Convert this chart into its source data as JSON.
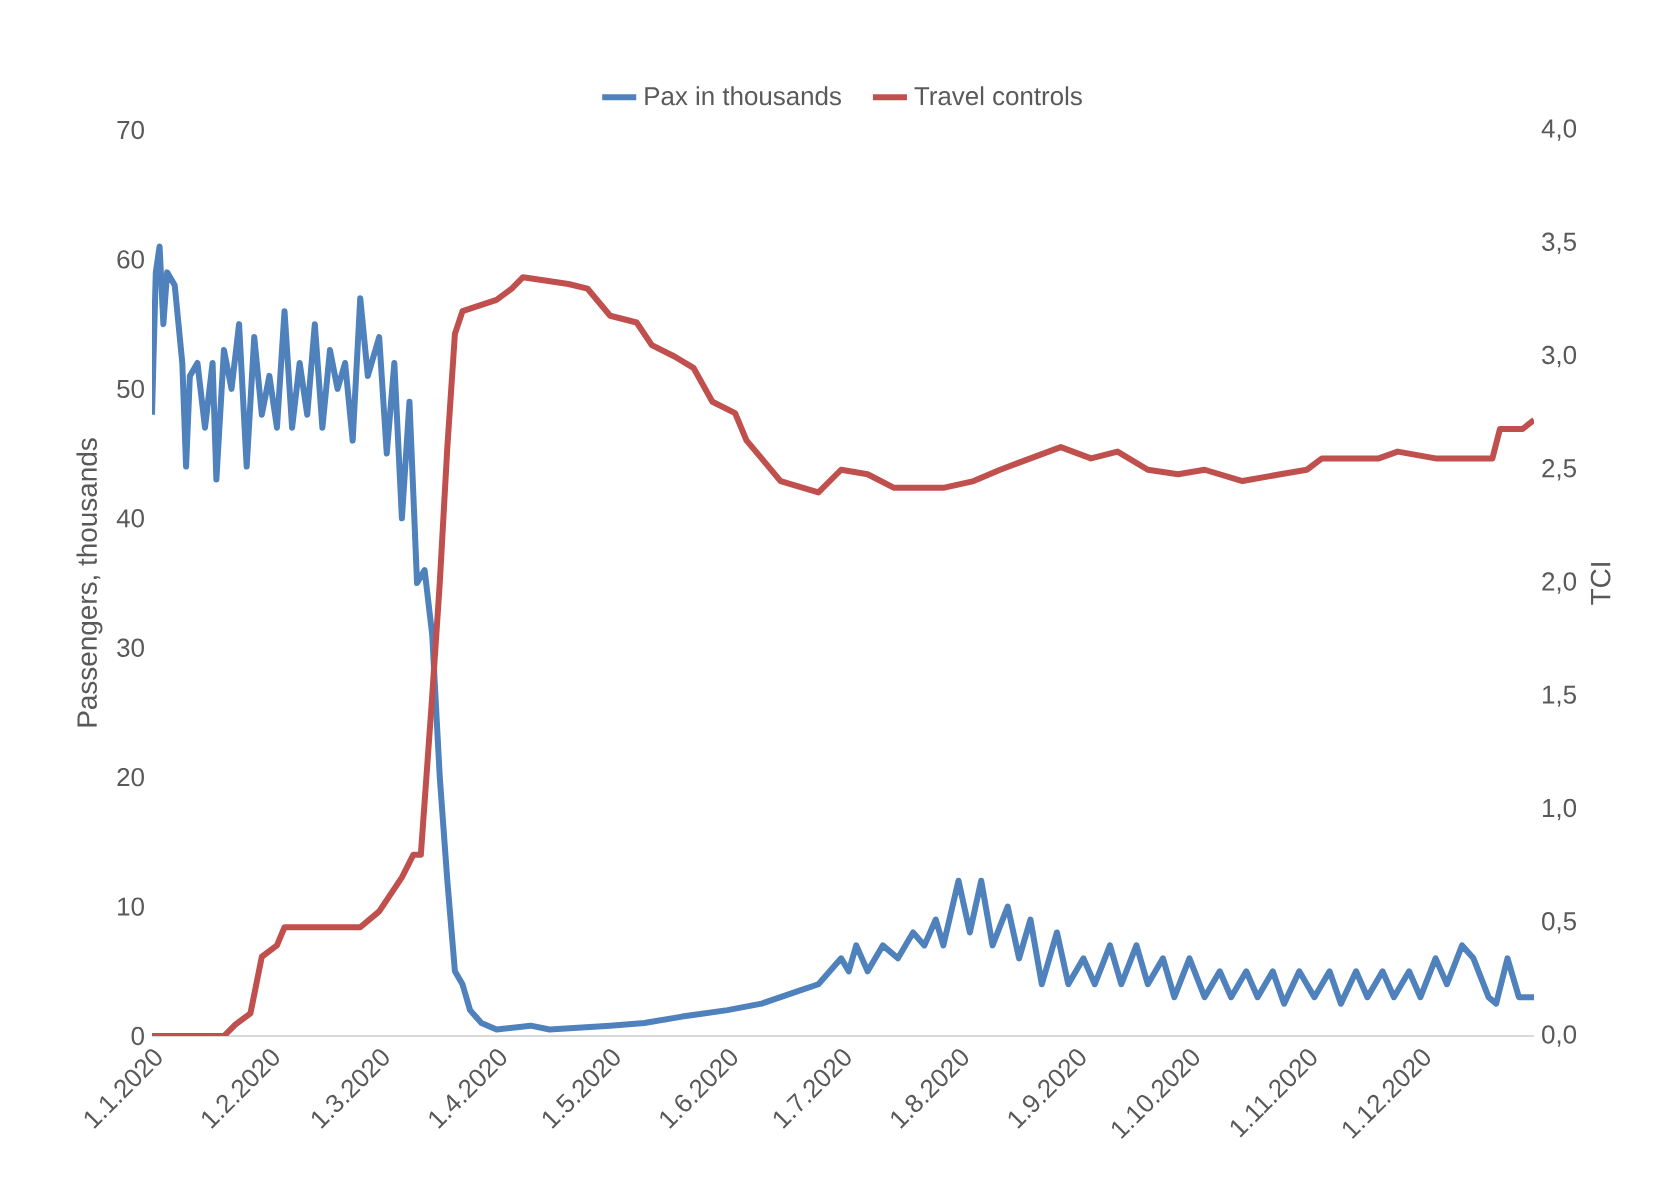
{
  "chart_data": {
    "type": "line",
    "ylabel": "Passengers, thousands",
    "y2label": "TCI",
    "legend": "top",
    "xlim": [
      "2020-01-01",
      "2020-12-31"
    ],
    "ylim": [
      0,
      70
    ],
    "yticks": [
      0,
      10,
      20,
      30,
      40,
      50,
      60,
      70
    ],
    "y2lim": [
      0,
      4
    ],
    "y2ticks": [
      {
        "value": 0,
        "label": "0,0"
      },
      {
        "value": 0.5,
        "label": "0,5"
      },
      {
        "value": 1,
        "label": "1,0"
      },
      {
        "value": 1.5,
        "label": "1,5"
      },
      {
        "value": 2,
        "label": "2,0"
      },
      {
        "value": 2.5,
        "label": "2,5"
      },
      {
        "value": 3,
        "label": "3,0"
      },
      {
        "value": 3.5,
        "label": "3,5"
      },
      {
        "value": 4,
        "label": "4,0"
      }
    ],
    "xticks": [
      {
        "value": "2020-01-01",
        "label": "1.1.2020"
      },
      {
        "value": "2020-02-01",
        "label": "1.2.2020"
      },
      {
        "value": "2020-03-01",
        "label": "1.3.2020"
      },
      {
        "value": "2020-04-01",
        "label": "1.4.2020"
      },
      {
        "value": "2020-05-01",
        "label": "1.5.2020"
      },
      {
        "value": "2020-06-01",
        "label": "1.6.2020"
      },
      {
        "value": "2020-07-01",
        "label": "1.7.2020"
      },
      {
        "value": "2020-08-01",
        "label": "1.8.2020"
      },
      {
        "value": "2020-09-01",
        "label": "1.9.2020"
      },
      {
        "value": "2020-10-01",
        "label": "1.10.2020"
      },
      {
        "value": "2020-11-01",
        "label": "1.11.2020"
      },
      {
        "value": "2020-12-01",
        "label": "1.12.2020"
      }
    ],
    "series": [
      {
        "name": "Pax in thousands",
        "color": "#4f81bd",
        "x": [
          "2020-01-01",
          "2020-01-02",
          "2020-01-03",
          "2020-01-04",
          "2020-01-05",
          "2020-01-07",
          "2020-01-09",
          "2020-01-10",
          "2020-01-11",
          "2020-01-13",
          "2020-01-15",
          "2020-01-17",
          "2020-01-18",
          "2020-01-20",
          "2020-01-22",
          "2020-01-24",
          "2020-01-26",
          "2020-01-28",
          "2020-01-30",
          "2020-02-01",
          "2020-02-03",
          "2020-02-05",
          "2020-02-07",
          "2020-02-09",
          "2020-02-11",
          "2020-02-13",
          "2020-02-15",
          "2020-02-17",
          "2020-02-19",
          "2020-02-21",
          "2020-02-23",
          "2020-02-25",
          "2020-02-27",
          "2020-03-01",
          "2020-03-03",
          "2020-03-05",
          "2020-03-07",
          "2020-03-09",
          "2020-03-11",
          "2020-03-13",
          "2020-03-15",
          "2020-03-17",
          "2020-03-19",
          "2020-03-21",
          "2020-03-23",
          "2020-03-25",
          "2020-03-28",
          "2020-04-01",
          "2020-04-10",
          "2020-04-15",
          "2020-05-01",
          "2020-05-10",
          "2020-05-20",
          "2020-06-01",
          "2020-06-10",
          "2020-06-20",
          "2020-06-25",
          "2020-07-01",
          "2020-07-03",
          "2020-07-05",
          "2020-07-08",
          "2020-07-12",
          "2020-07-16",
          "2020-07-20",
          "2020-07-23",
          "2020-07-26",
          "2020-07-28",
          "2020-08-01",
          "2020-08-04",
          "2020-08-07",
          "2020-08-10",
          "2020-08-14",
          "2020-08-17",
          "2020-08-20",
          "2020-08-23",
          "2020-08-27",
          "2020-08-30",
          "2020-09-03",
          "2020-09-06",
          "2020-09-10",
          "2020-09-13",
          "2020-09-17",
          "2020-09-20",
          "2020-09-24",
          "2020-09-27",
          "2020-10-01",
          "2020-10-05",
          "2020-10-09",
          "2020-10-12",
          "2020-10-16",
          "2020-10-19",
          "2020-10-23",
          "2020-10-26",
          "2020-10-30",
          "2020-11-03",
          "2020-11-07",
          "2020-11-10",
          "2020-11-14",
          "2020-11-17",
          "2020-11-21",
          "2020-11-24",
          "2020-11-28",
          "2020-12-01",
          "2020-12-05",
          "2020-12-08",
          "2020-12-12",
          "2020-12-15",
          "2020-12-19",
          "2020-12-21",
          "2020-12-24",
          "2020-12-27",
          "2020-12-31"
        ],
        "values": [
          48,
          59,
          61,
          55,
          59,
          58,
          52,
          44,
          51,
          52,
          47,
          52,
          43,
          53,
          50,
          55,
          44,
          54,
          48,
          51,
          47,
          56,
          47,
          52,
          48,
          55,
          47,
          53,
          50,
          52,
          46,
          57,
          51,
          54,
          45,
          52,
          40,
          49,
          35,
          36,
          31,
          20,
          12,
          5,
          4,
          2,
          1,
          0.5,
          0.8,
          0.5,
          0.8,
          1,
          1.5,
          2,
          2.5,
          3.5,
          4,
          6,
          5,
          7,
          5,
          7,
          6,
          8,
          7,
          9,
          7,
          12,
          8,
          12,
          7,
          10,
          6,
          9,
          4,
          8,
          4,
          6,
          4,
          7,
          4,
          7,
          4,
          6,
          3,
          6,
          3,
          5,
          3,
          5,
          3,
          5,
          2.5,
          5,
          3,
          5,
          2.5,
          5,
          3,
          5,
          3,
          5,
          3,
          6,
          4,
          7,
          6,
          3,
          2.5,
          6,
          3,
          3
        ]
      },
      {
        "name": "Travel controls",
        "color": "#c0504d",
        "axis": "y2",
        "x": [
          "2020-01-01",
          "2020-01-20",
          "2020-01-23",
          "2020-01-27",
          "2020-01-30",
          "2020-02-03",
          "2020-02-05",
          "2020-02-25",
          "2020-03-01",
          "2020-03-07",
          "2020-03-10",
          "2020-03-12",
          "2020-03-15",
          "2020-03-17",
          "2020-03-19",
          "2020-03-21",
          "2020-03-23",
          "2020-04-01",
          "2020-04-05",
          "2020-04-08",
          "2020-04-20",
          "2020-04-25",
          "2020-05-01",
          "2020-05-08",
          "2020-05-12",
          "2020-05-18",
          "2020-05-23",
          "2020-05-28",
          "2020-06-03",
          "2020-06-06",
          "2020-06-10",
          "2020-06-15",
          "2020-06-25",
          "2020-07-01",
          "2020-07-08",
          "2020-07-15",
          "2020-07-28",
          "2020-08-05",
          "2020-08-12",
          "2020-08-20",
          "2020-08-28",
          "2020-09-05",
          "2020-09-12",
          "2020-09-20",
          "2020-09-28",
          "2020-10-05",
          "2020-10-15",
          "2020-10-25",
          "2020-11-01",
          "2020-11-05",
          "2020-11-20",
          "2020-11-25",
          "2020-12-05",
          "2020-12-20",
          "2020-12-22",
          "2020-12-28",
          "2020-12-31"
        ],
        "values": [
          0,
          0,
          0.05,
          0.1,
          0.35,
          0.4,
          0.48,
          0.48,
          0.55,
          0.7,
          0.8,
          0.8,
          1.5,
          2.0,
          2.6,
          3.1,
          3.2,
          3.25,
          3.3,
          3.35,
          3.32,
          3.3,
          3.18,
          3.15,
          3.05,
          3.0,
          2.95,
          2.8,
          2.75,
          2.63,
          2.55,
          2.45,
          2.4,
          2.5,
          2.48,
          2.42,
          2.42,
          2.45,
          2.5,
          2.55,
          2.6,
          2.55,
          2.58,
          2.5,
          2.48,
          2.5,
          2.45,
          2.48,
          2.5,
          2.55,
          2.55,
          2.58,
          2.55,
          2.55,
          2.68,
          2.68,
          2.72
        ]
      }
    ]
  }
}
